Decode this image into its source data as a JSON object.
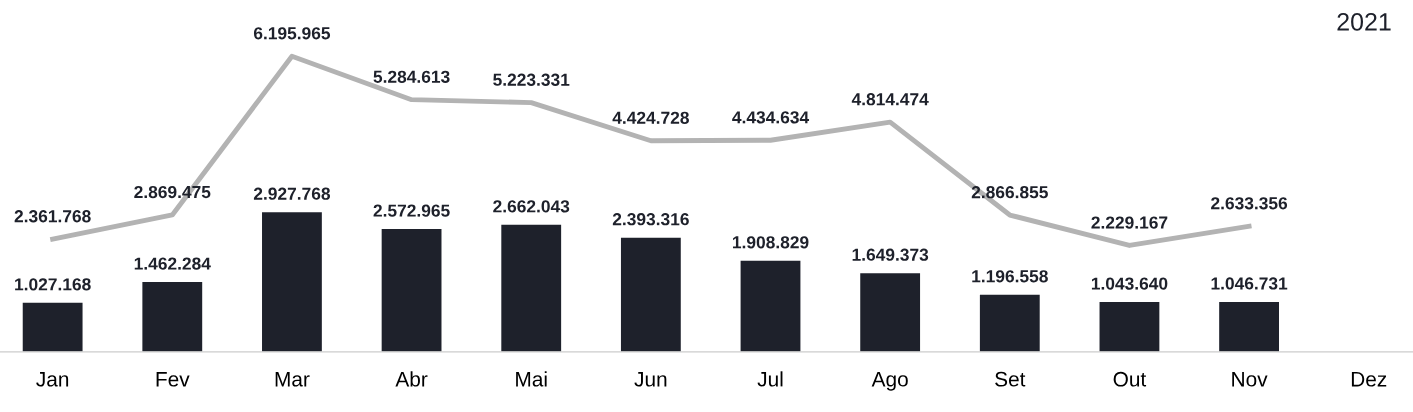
{
  "chart_data": {
    "type": "bar",
    "subtitle": "2021",
    "categories": [
      "Jan",
      "Fev",
      "Mar",
      "Abr",
      "Mai",
      "Jun",
      "Jul",
      "Ago",
      "Set",
      "Out",
      "Nov",
      "Dez"
    ],
    "series": [
      {
        "color": "#1e212b",
        "values": [
          1027168,
          1462284,
          2927768,
          2572965,
          2662043,
          2393316,
          1908829,
          1649373,
          1196558,
          1043640,
          1046731,
          null
        ],
        "value_labels": [
          "1.027.168",
          "1.462.284",
          "2.927.768",
          "2.572.965",
          "2.662.043",
          "2.393.316",
          "1.908.829",
          "1.649.373",
          "1.196.558",
          "1.043.640",
          "1.046.731",
          null
        ]
      },
      {
        "type": "line",
        "color": "#b3b3b3",
        "values": [
          2361768,
          2869475,
          6195965,
          5284613,
          5223331,
          4424728,
          4434634,
          4814474,
          2866855,
          2229167,
          2633356,
          null
        ],
        "value_labels": [
          "2.361.768",
          "2.869.475",
          "6.195.965",
          "5.284.613",
          "5.223.331",
          "4.424.728",
          "4.434.634",
          "4.814.474",
          "2.866.855",
          "2.229.167",
          "2.633.356",
          null
        ]
      }
    ],
    "grid": false,
    "legend": false,
    "marker": "none"
  }
}
